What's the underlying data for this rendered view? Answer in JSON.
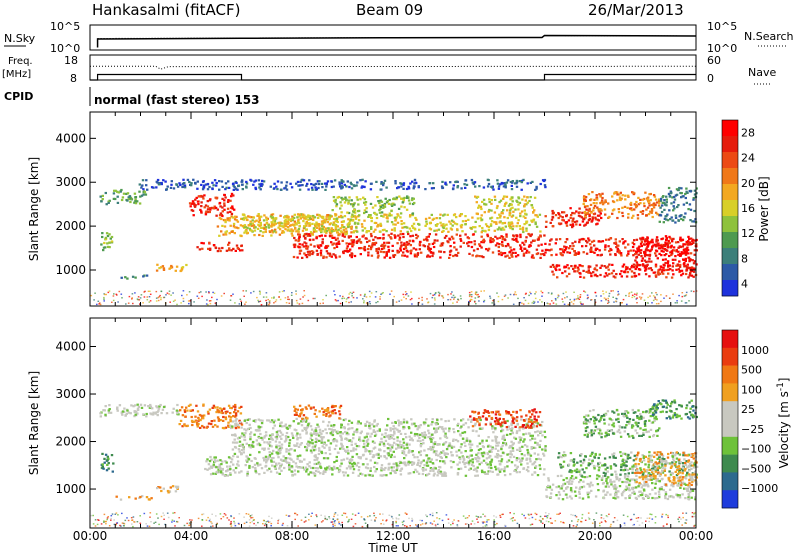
{
  "header": {
    "station": "Hankasalmi (fitACF)",
    "beam": "Beam 09",
    "date": "26/Mar/2013"
  },
  "chart_data": [
    {
      "type": "line",
      "panel": "noise",
      "left_label": "N.Sky",
      "right_label": "N.Search",
      "left_ticks": [
        "10^5",
        "10^0"
      ],
      "right_ticks": [
        "10^5",
        "10^0"
      ],
      "series": [
        {
          "name": "N.Sky",
          "style": "solid",
          "x": [
            0.3,
            0.3,
            6,
            12,
            17.9,
            18,
            24
          ],
          "y": [
            0.5,
            2.2,
            2.35,
            2.45,
            2.5,
            2.9,
            2.8
          ]
        },
        {
          "name": "N.Search",
          "style": "dotted",
          "x": [
            0.3,
            6,
            12,
            17.9,
            18,
            24
          ],
          "y": [
            2.3,
            2.4,
            2.5,
            2.5,
            2.9,
            2.8
          ]
        }
      ]
    },
    {
      "type": "line",
      "panel": "frequency",
      "left_label": "Freq.",
      "left_unit": "[MHz]",
      "right_label": "Nave",
      "left_ticks": [
        "18",
        "8"
      ],
      "right_ticks": [
        "60",
        "0"
      ],
      "freq": {
        "x": [
          0,
          0.3,
          0.3,
          6,
          6,
          18,
          18,
          24
        ],
        "y": [
          8,
          8,
          10.2,
          10.2,
          8,
          8,
          10.2,
          10.2
        ]
      },
      "nave": {
        "x": [
          0,
          2.6,
          2.8,
          3.1,
          24
        ],
        "y": [
          33,
          33,
          26,
          32,
          33
        ]
      }
    },
    {
      "type": "table",
      "panel": "cpid",
      "label": "CPID",
      "text": "normal (fast stereo) 153"
    },
    {
      "type": "heatmap",
      "panel": "power",
      "ylabel": "Slant Range [km]",
      "ylim": [
        180,
        4600
      ],
      "y_ticks": [
        1000,
        2000,
        3000,
        4000
      ],
      "xlim": [
        0,
        24
      ],
      "colorbar": {
        "label": "Power [dB]",
        "ticks": [
          4,
          8,
          12,
          16,
          20,
          24,
          28
        ],
        "colors": [
          "#1e32dc",
          "#2d5aa6",
          "#3c7f7a",
          "#4e9a50",
          "#8ec23c",
          "#d8cf28",
          "#f3a820",
          "#f07818",
          "#ec4a14",
          "#e61c0c",
          "#ff0000"
        ]
      },
      "regions": [
        {
          "x0": 0.35,
          "x1": 2.2,
          "y0": 2520,
          "y1": 2850,
          "level": 3
        },
        {
          "x0": 1.9,
          "x1": 18,
          "y0": 2850,
          "y1": 3080,
          "level": 1
        },
        {
          "x0": 0.4,
          "x1": 0.9,
          "y0": 1450,
          "y1": 1900,
          "level": 4
        },
        {
          "x0": 1.0,
          "x1": 2.4,
          "y0": 820,
          "y1": 900,
          "level": 2
        },
        {
          "x0": 2.6,
          "x1": 3.8,
          "y0": 1000,
          "y1": 1150,
          "level": 6
        },
        {
          "x0": 3.9,
          "x1": 5.7,
          "y0": 2250,
          "y1": 2780,
          "level": 9
        },
        {
          "x0": 5.0,
          "x1": 10.5,
          "y0": 1800,
          "y1": 2300,
          "level": 6
        },
        {
          "x0": 6,
          "x1": 17.8,
          "y0": 1880,
          "y1": 2300,
          "level": 5
        },
        {
          "x0": 8,
          "x1": 18,
          "y0": 1300,
          "y1": 1850,
          "level": 9
        },
        {
          "x0": 4.2,
          "x1": 6.0,
          "y0": 1450,
          "y1": 1650,
          "level": 9
        },
        {
          "x0": 9.5,
          "x1": 12.8,
          "y0": 2300,
          "y1": 2700,
          "level": 4
        },
        {
          "x0": 15.2,
          "x1": 17.6,
          "y0": 2300,
          "y1": 2700,
          "level": 5
        },
        {
          "x0": 18,
          "x1": 20.2,
          "y0": 2000,
          "y1": 2450,
          "level": 9
        },
        {
          "x0": 18,
          "x1": 24,
          "y0": 1350,
          "y1": 1750,
          "level": 9
        },
        {
          "x0": 18.2,
          "x1": 24,
          "y0": 850,
          "y1": 1150,
          "level": 9
        },
        {
          "x0": 21.5,
          "x1": 24,
          "y0": 1000,
          "y1": 1800,
          "level": 10
        },
        {
          "x0": 19.5,
          "x1": 22.5,
          "y0": 2200,
          "y1": 2800,
          "level": 7
        },
        {
          "x0": 22.5,
          "x1": 24,
          "y0": 2100,
          "y1": 2900,
          "level": 2
        }
      ]
    },
    {
      "type": "heatmap",
      "panel": "velocity",
      "ylabel": "Slant Range [km]",
      "ylim": [
        180,
        4600
      ],
      "y_ticks": [
        1000,
        2000,
        3000,
        4000
      ],
      "xlim": [
        0,
        24
      ],
      "x_ticks": [
        "00:00",
        "04:00",
        "08:00",
        "12:00",
        "16:00",
        "20:00",
        "00:00"
      ],
      "xlabel": "Time UT",
      "colorbar": {
        "label": "Velocity [m s^-1]",
        "ticks": [
          "1000",
          "500",
          "100",
          "25",
          "−25",
          "−100",
          "−500",
          "−1000"
        ],
        "colors": [
          "#1e3cdc",
          "#2d6a8e",
          "#3e8a4e",
          "#6ec23a",
          "#c8c8c0",
          "#c8c8c0",
          "#f0a020",
          "#f07814",
          "#ea3c10",
          "#e61010"
        ]
      },
      "regions": [
        {
          "x0": 0.3,
          "x1": 3.5,
          "y0": 2550,
          "y1": 2800,
          "level": 4
        },
        {
          "x0": 0.4,
          "x1": 0.9,
          "y0": 1350,
          "y1": 1800,
          "level": 2
        },
        {
          "x0": 1.0,
          "x1": 2.5,
          "y0": 800,
          "y1": 880,
          "level": 6
        },
        {
          "x0": 2.6,
          "x1": 3.5,
          "y0": 950,
          "y1": 1100,
          "level": 6
        },
        {
          "x0": 3.5,
          "x1": 6.0,
          "y0": 2300,
          "y1": 2800,
          "level": 7
        },
        {
          "x0": 5.5,
          "x1": 18,
          "y0": 1700,
          "y1": 2500,
          "level": 4
        },
        {
          "x0": 4.5,
          "x1": 18,
          "y0": 1300,
          "y1": 1700,
          "level": 4
        },
        {
          "x0": 8,
          "x1": 10,
          "y0": 2500,
          "y1": 2800,
          "level": 7
        },
        {
          "x0": 15,
          "x1": 17.8,
          "y0": 2300,
          "y1": 2700,
          "level": 8
        },
        {
          "x0": 18,
          "x1": 24,
          "y0": 800,
          "y1": 1300,
          "level": 4
        },
        {
          "x0": 18.5,
          "x1": 24,
          "y0": 1300,
          "y1": 1800,
          "level": 3
        },
        {
          "x0": 21.5,
          "x1": 24,
          "y0": 1100,
          "y1": 1800,
          "level": 6
        },
        {
          "x0": 19.5,
          "x1": 22.5,
          "y0": 2100,
          "y1": 2700,
          "level": 3
        },
        {
          "x0": 22,
          "x1": 24,
          "y0": 2500,
          "y1": 2900,
          "level": 2
        }
      ]
    }
  ]
}
